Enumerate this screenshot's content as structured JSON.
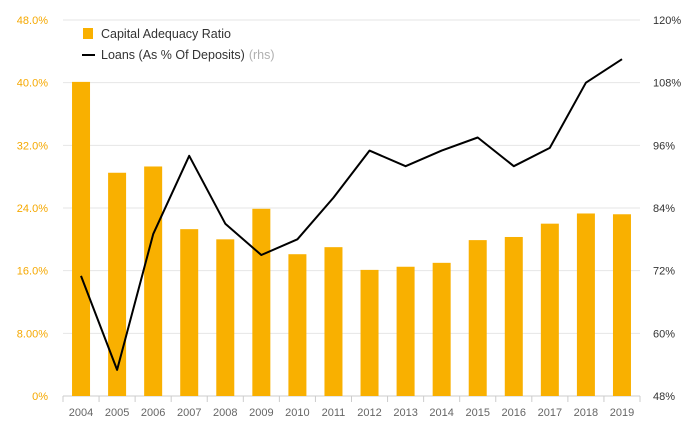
{
  "chart_data": {
    "type": "bar",
    "categories": [
      "2004",
      "2005",
      "2006",
      "2007",
      "2008",
      "2009",
      "2010",
      "2011",
      "2012",
      "2013",
      "2014",
      "2015",
      "2016",
      "2017",
      "2018",
      "2019"
    ],
    "series": [
      {
        "name": "Capital Adequacy Ratio",
        "kind": "bar",
        "axis": "left",
        "color": "#f9b000",
        "values": [
          40.1,
          28.5,
          29.3,
          21.3,
          20.0,
          23.9,
          18.1,
          19.0,
          16.1,
          16.5,
          17.0,
          19.9,
          20.3,
          22.0,
          23.3,
          23.2
        ]
      },
      {
        "name": "Loans (As % Of Deposits)",
        "name_suffix": "(rhs)",
        "kind": "line",
        "axis": "right",
        "color": "#000000",
        "values": [
          71.0,
          53.0,
          79.0,
          94.0,
          81.0,
          75.0,
          78.0,
          86.0,
          95.0,
          92.0,
          95.0,
          97.5,
          92.0,
          95.5,
          108.0,
          112.5
        ]
      }
    ],
    "y_left": {
      "range": [
        0,
        48
      ],
      "ticks": [
        0,
        8,
        16,
        24,
        32,
        40,
        48
      ],
      "tick_labels": [
        "0%",
        "8.00%",
        "16.0%",
        "24.0%",
        "32.0%",
        "40.0%",
        "48.0%"
      ]
    },
    "y_right": {
      "range": [
        48,
        120
      ],
      "ticks": [
        48,
        60,
        72,
        84,
        96,
        108,
        120
      ],
      "tick_labels": [
        "48%",
        "60%",
        "72%",
        "84%",
        "96%",
        "108%",
        "120%"
      ]
    },
    "grid": true,
    "legend_position": "top-left"
  },
  "colors": {
    "bar": "#f9b000",
    "line": "#000000",
    "left_axis_text": "#f5a800",
    "grid": "#e6e6e6"
  }
}
